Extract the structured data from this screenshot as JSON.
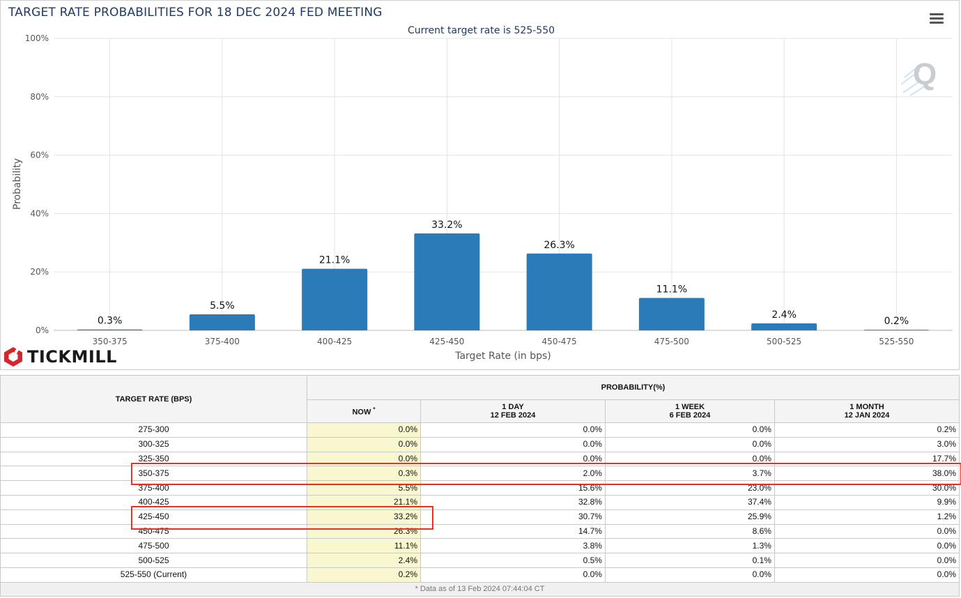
{
  "chart_data": {
    "type": "bar",
    "title": "TARGET RATE PROBABILITIES FOR 18 DEC 2024 FED MEETING",
    "subtitle": "Current target rate is 525-550",
    "xlabel": "Target Rate (in bps)",
    "ylabel": "Probability",
    "ylim": [
      0,
      100
    ],
    "yticks": [
      "0%",
      "20%",
      "40%",
      "60%",
      "80%",
      "100%"
    ],
    "categories": [
      "350-375",
      "375-400",
      "400-425",
      "425-450",
      "450-475",
      "475-500",
      "500-525",
      "525-550"
    ],
    "values": [
      0.3,
      5.5,
      21.1,
      33.2,
      26.3,
      11.1,
      2.4,
      0.2
    ],
    "labels": [
      "0.3%",
      "5.5%",
      "21.1%",
      "33.2%",
      "26.3%",
      "11.1%",
      "2.4%",
      "0.2%"
    ],
    "bar_color": "#2b7bb9",
    "grid": true,
    "legend": "none"
  },
  "brand": {
    "name": "TICKMILL",
    "logo_color": "#d4262c"
  },
  "watermark": {
    "letter": "Q"
  },
  "menu_icon": "hamburger-menu-icon",
  "table": {
    "rate_header": "TARGET RATE (BPS)",
    "prob_header": "PROBABILITY(%)",
    "now_header": "NOW",
    "now_mark": "*",
    "col1_line1": "1 DAY",
    "col1_line2": "12 FEB 2024",
    "col2_line1": "1 WEEK",
    "col2_line2": "6 FEB 2024",
    "col3_line1": "1 MONTH",
    "col3_line2": "12 JAN 2024",
    "rows": [
      {
        "rate": "275-300",
        "now": "0.0%",
        "day": "0.0%",
        "week": "0.0%",
        "month": "0.2%"
      },
      {
        "rate": "300-325",
        "now": "0.0%",
        "day": "0.0%",
        "week": "0.0%",
        "month": "3.0%"
      },
      {
        "rate": "325-350",
        "now": "0.0%",
        "day": "0.0%",
        "week": "0.0%",
        "month": "17.7%"
      },
      {
        "rate": "350-375",
        "now": "0.3%",
        "day": "2.0%",
        "week": "3.7%",
        "month": "38.0%"
      },
      {
        "rate": "375-400",
        "now": "5.5%",
        "day": "15.6%",
        "week": "23.0%",
        "month": "30.0%"
      },
      {
        "rate": "400-425",
        "now": "21.1%",
        "day": "32.8%",
        "week": "37.4%",
        "month": "9.9%"
      },
      {
        "rate": "425-450",
        "now": "33.2%",
        "day": "30.7%",
        "week": "25.9%",
        "month": "1.2%"
      },
      {
        "rate": "450-475",
        "now": "26.3%",
        "day": "14.7%",
        "week": "8.6%",
        "month": "0.0%"
      },
      {
        "rate": "475-500",
        "now": "11.1%",
        "day": "3.8%",
        "week": "1.3%",
        "month": "0.0%"
      },
      {
        "rate": "500-525",
        "now": "2.4%",
        "day": "0.5%",
        "week": "0.1%",
        "month": "0.0%"
      },
      {
        "rate": "525-550 (Current)",
        "now": "0.2%",
        "day": "0.0%",
        "week": "0.0%",
        "month": "0.0%"
      }
    ],
    "footnote": "* Data as of 13 Feb 2024 07:44:04 CT"
  },
  "annotation_color": "#e8321f"
}
